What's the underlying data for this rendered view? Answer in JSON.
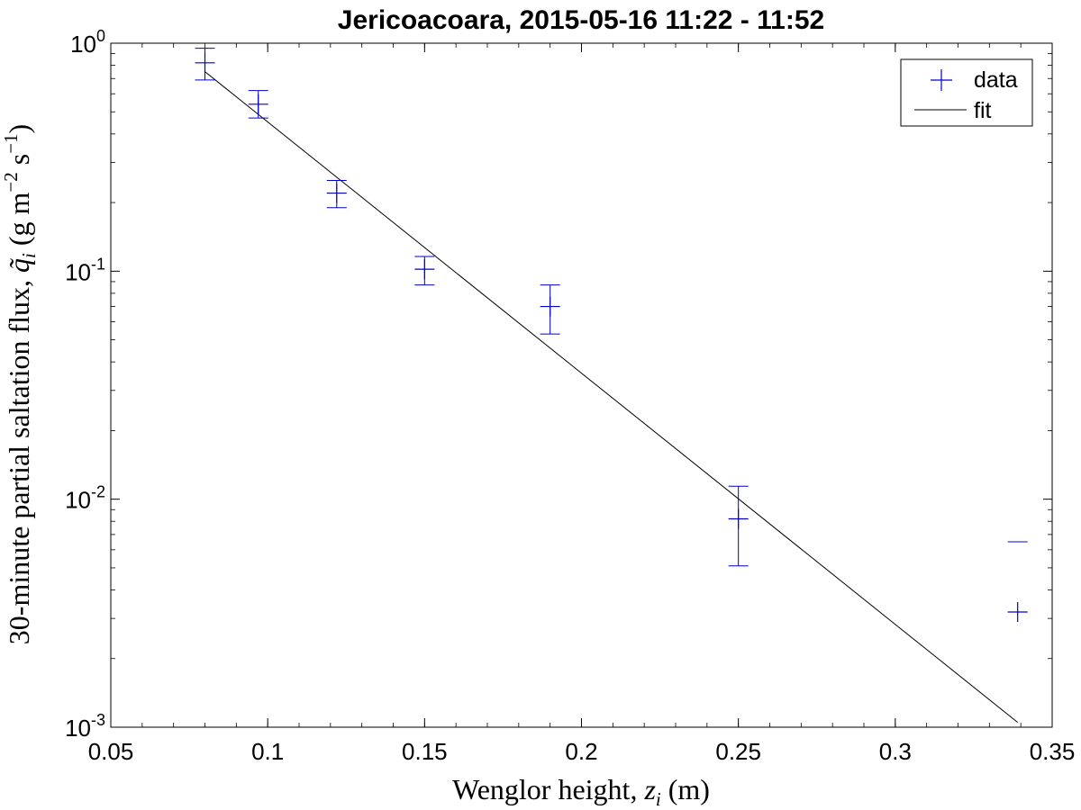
{
  "chart_data": {
    "type": "scatter",
    "title": "Jericoacoara, 2015-05-16 11:22 - 11:52",
    "xlabel": {
      "prefix": "Wenglor height, ",
      "var": "z",
      "sub": "i",
      "suffix": " (m)"
    },
    "ylabel": {
      "prefix": "30-minute partial saltation flux, ",
      "var": "q̃",
      "sub": "i",
      "unit_open": " (g m",
      "unit_exp1": "−2",
      "unit_mid": " s",
      "unit_exp2": "−1",
      "unit_close": ")"
    },
    "xlim": [
      0.05,
      0.35
    ],
    "ylim": [
      0.001,
      1
    ],
    "yscale": "log",
    "grid": false,
    "legend_position": "top-right",
    "x_ticks": [
      {
        "value": 0.05,
        "label": "0.05"
      },
      {
        "value": 0.1,
        "label": "0.1"
      },
      {
        "value": 0.15,
        "label": "0.15"
      },
      {
        "value": 0.2,
        "label": "0.2"
      },
      {
        "value": 0.25,
        "label": "0.25"
      },
      {
        "value": 0.3,
        "label": "0.3"
      },
      {
        "value": 0.35,
        "label": "0.35"
      }
    ],
    "y_ticks": [
      {
        "value": 1,
        "base": "10",
        "exp": "0"
      },
      {
        "value": 0.1,
        "base": "10",
        "exp": "-1"
      },
      {
        "value": 0.01,
        "base": "10",
        "exp": "-2"
      },
      {
        "value": 0.001,
        "base": "10",
        "exp": "-3"
      }
    ],
    "series": [
      {
        "name": "data",
        "color": "#0000cc",
        "marker": "plus",
        "points": [
          {
            "x": 0.08,
            "y": 0.82,
            "y_low": 0.69,
            "y_high": 0.95
          },
          {
            "x": 0.097,
            "y": 0.54,
            "y_low": 0.47,
            "y_high": 0.62
          },
          {
            "x": 0.122,
            "y": 0.22,
            "y_low": 0.19,
            "y_high": 0.25
          },
          {
            "x": 0.15,
            "y": 0.102,
            "y_low": 0.087,
            "y_high": 0.116
          },
          {
            "x": 0.19,
            "y": 0.07,
            "y_low": 0.053,
            "y_high": 0.087
          },
          {
            "x": 0.25,
            "y": 0.0082,
            "y_low": 0.0051,
            "y_high": 0.0114
          },
          {
            "x": 0.339,
            "y": 0.0032,
            "y_low": null,
            "y_high": 0.0065
          }
        ]
      },
      {
        "name": "fit",
        "color": "#000000",
        "type": "line",
        "x": [
          0.08,
          0.339
        ],
        "y": [
          0.75,
          0.00105
        ]
      }
    ]
  }
}
